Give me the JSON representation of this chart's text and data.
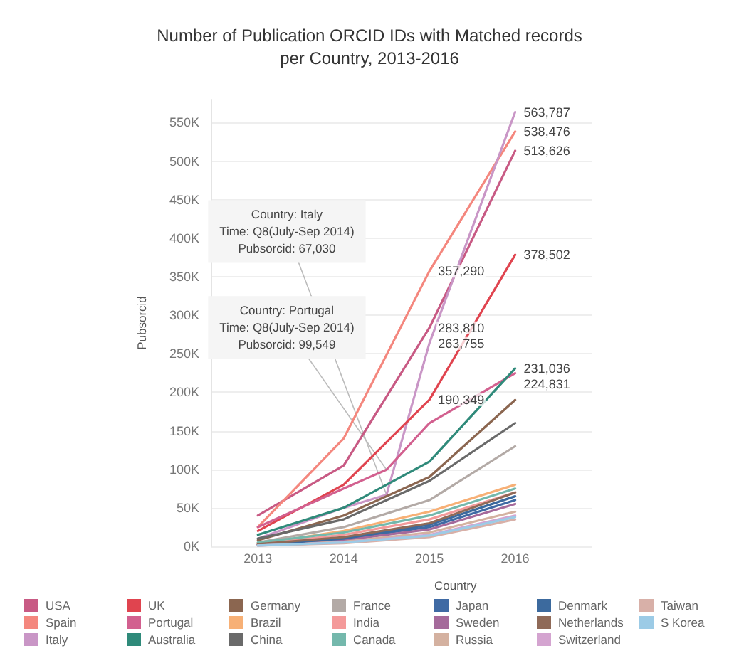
{
  "chart_data": {
    "type": "line",
    "title": "Number of Publication ORCID IDs with Matched records\nper Country, 2013-2016",
    "ylabel": "Pubsorcid",
    "legend_title": "Country",
    "legend": "bottom",
    "grid": "y",
    "marker": "none",
    "line_style": "solid",
    "xlim": [
      2012.45,
      2016.9
    ],
    "xticks": [
      2013,
      2014,
      2015,
      2016
    ],
    "ylim": [
      0,
      580000
    ],
    "yticks": [
      {
        "value": 0,
        "label": "0K"
      },
      {
        "value": 50000,
        "label": "50K"
      },
      {
        "value": 100000,
        "label": "100K"
      },
      {
        "value": 150000,
        "label": "150K"
      },
      {
        "value": 200000,
        "label": "200K"
      },
      {
        "value": 250000,
        "label": "250K"
      },
      {
        "value": 300000,
        "label": "300K"
      },
      {
        "value": 350000,
        "label": "350K"
      },
      {
        "value": 400000,
        "label": "400K"
      },
      {
        "value": 450000,
        "label": "450K"
      },
      {
        "value": 500000,
        "label": "500K"
      },
      {
        "value": 550000,
        "label": "550K"
      }
    ],
    "series": [
      {
        "name": "USA",
        "color": "#c85a84",
        "x": [
          2013,
          2014,
          2015,
          2016
        ],
        "values": [
          40000,
          105000,
          283810,
          513626
        ],
        "value_labels": [
          null,
          null,
          "283,810",
          "513,626"
        ]
      },
      {
        "name": "Spain",
        "color": "#f4877e",
        "x": [
          2013,
          2014,
          2015,
          2016
        ],
        "values": [
          25000,
          140000,
          357290,
          538476
        ],
        "value_labels": [
          null,
          null,
          "357,290",
          "538,476"
        ]
      },
      {
        "name": "Italy",
        "color": "#c996c6",
        "x": [
          2013,
          2014,
          2014.5,
          2015,
          2016
        ],
        "values": [
          10000,
          50000,
          67030,
          263755,
          563787
        ],
        "value_labels": [
          null,
          null,
          null,
          "263,755",
          "563,787"
        ]
      },
      {
        "name": "UK",
        "color": "#e0444f",
        "x": [
          2013,
          2014,
          2015,
          2016
        ],
        "values": [
          20000,
          80000,
          190349,
          378502
        ],
        "value_labels": [
          null,
          null,
          "190,349",
          "378,502"
        ]
      },
      {
        "name": "Portugal",
        "color": "#d2608f",
        "x": [
          2013,
          2014,
          2014.5,
          2015,
          2016
        ],
        "values": [
          25000,
          75000,
          99549,
          160000,
          224831
        ],
        "value_labels": [
          null,
          null,
          null,
          null,
          "224,831"
        ]
      },
      {
        "name": "Australia",
        "color": "#2f8a7a",
        "x": [
          2013,
          2014,
          2015,
          2016
        ],
        "values": [
          15000,
          50000,
          110000,
          231036
        ],
        "value_labels": [
          null,
          null,
          null,
          "231,036"
        ]
      },
      {
        "name": "Germany",
        "color": "#8b6650",
        "x": [
          2013,
          2014,
          2015,
          2016
        ],
        "values": [
          8000,
          40000,
          90000,
          190000
        ]
      },
      {
        "name": "Brazil",
        "color": "#f7b076",
        "x": [
          2013,
          2014,
          2015,
          2016
        ],
        "values": [
          3000,
          20000,
          45000,
          80000
        ]
      },
      {
        "name": "China",
        "color": "#6a6a6a",
        "x": [
          2013,
          2014,
          2015,
          2016
        ],
        "values": [
          10000,
          35000,
          85000,
          160000
        ]
      },
      {
        "name": "France",
        "color": "#b3aaa6",
        "x": [
          2013,
          2014,
          2015,
          2016
        ],
        "values": [
          5000,
          25000,
          60000,
          130000
        ]
      },
      {
        "name": "India",
        "color": "#f49a9a",
        "x": [
          2013,
          2014,
          2015,
          2016
        ],
        "values": [
          3000,
          15000,
          35000,
          70000
        ]
      },
      {
        "name": "Canada",
        "color": "#74b8ac",
        "x": [
          2013,
          2014,
          2015,
          2016
        ],
        "values": [
          5000,
          18000,
          40000,
          75000
        ]
      },
      {
        "name": "Japan",
        "color": "#3f6aa4",
        "x": [
          2013,
          2014,
          2015,
          2016
        ],
        "values": [
          2000,
          10000,
          25000,
          60000
        ]
      },
      {
        "name": "Sweden",
        "color": "#a56a9b",
        "x": [
          2013,
          2014,
          2015,
          2016
        ],
        "values": [
          2000,
          8000,
          22000,
          55000
        ]
      },
      {
        "name": "Russia",
        "color": "#d4b1a0",
        "x": [
          2013,
          2014,
          2015,
          2016
        ],
        "values": [
          1000,
          6000,
          18000,
          45000
        ]
      },
      {
        "name": "Denmark",
        "color": "#3c6a9e",
        "x": [
          2013,
          2014,
          2015,
          2016
        ],
        "values": [
          2000,
          10000,
          28000,
          65000
        ]
      },
      {
        "name": "Netherlands",
        "color": "#8f6a58",
        "x": [
          2013,
          2014,
          2015,
          2016
        ],
        "values": [
          3000,
          12000,
          30000,
          70000
        ]
      },
      {
        "name": "Switzerland",
        "color": "#d4a4d0",
        "x": [
          2013,
          2014,
          2015,
          2016
        ],
        "values": [
          1000,
          5000,
          15000,
          40000
        ]
      },
      {
        "name": "Taiwan",
        "color": "#d8b0a8",
        "x": [
          2013,
          2014,
          2015,
          2016
        ],
        "values": [
          1000,
          4000,
          12000,
          35000
        ]
      },
      {
        "name": "S Korea",
        "color": "#9ccbe6",
        "x": [
          2013,
          2014,
          2015,
          2016
        ],
        "values": [
          1000,
          5000,
          14000,
          38000
        ]
      }
    ],
    "annotations": [
      {
        "text": "Country: Portugal\nTime: Q8(July-Sep 2014)\nPubsorcid: 99,549",
        "x": 2014.5,
        "y": 99549
      },
      {
        "text": "Country: Italy\nTime: Q8(July-Sep 2014)\nPubsorcid: 67,030",
        "x": 2014.5,
        "y": 67030
      }
    ]
  }
}
